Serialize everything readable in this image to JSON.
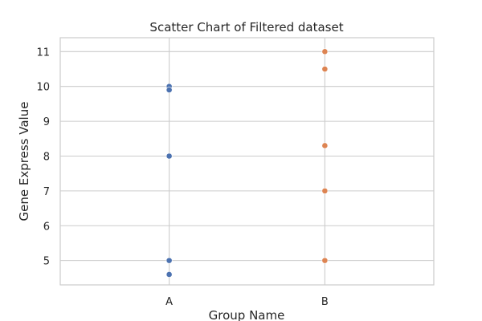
{
  "chart_data": {
    "type": "scatter",
    "title": "Scatter Chart of Filtered dataset",
    "xlabel": "Group Name",
    "ylabel": "Gene Express Value",
    "categories": [
      "A",
      "B"
    ],
    "ylim": [
      4.3,
      11.4
    ],
    "yticks": [
      5,
      6,
      7,
      8,
      9,
      10,
      11
    ],
    "grid": true,
    "series": [
      {
        "category": "A",
        "color": "#4c72b0",
        "values": [
          10.0,
          9.9,
          8.0,
          5.0,
          4.6
        ]
      },
      {
        "category": "B",
        "color": "#dd8452",
        "values": [
          11.0,
          10.5,
          8.3,
          7.0,
          5.0
        ]
      }
    ]
  }
}
